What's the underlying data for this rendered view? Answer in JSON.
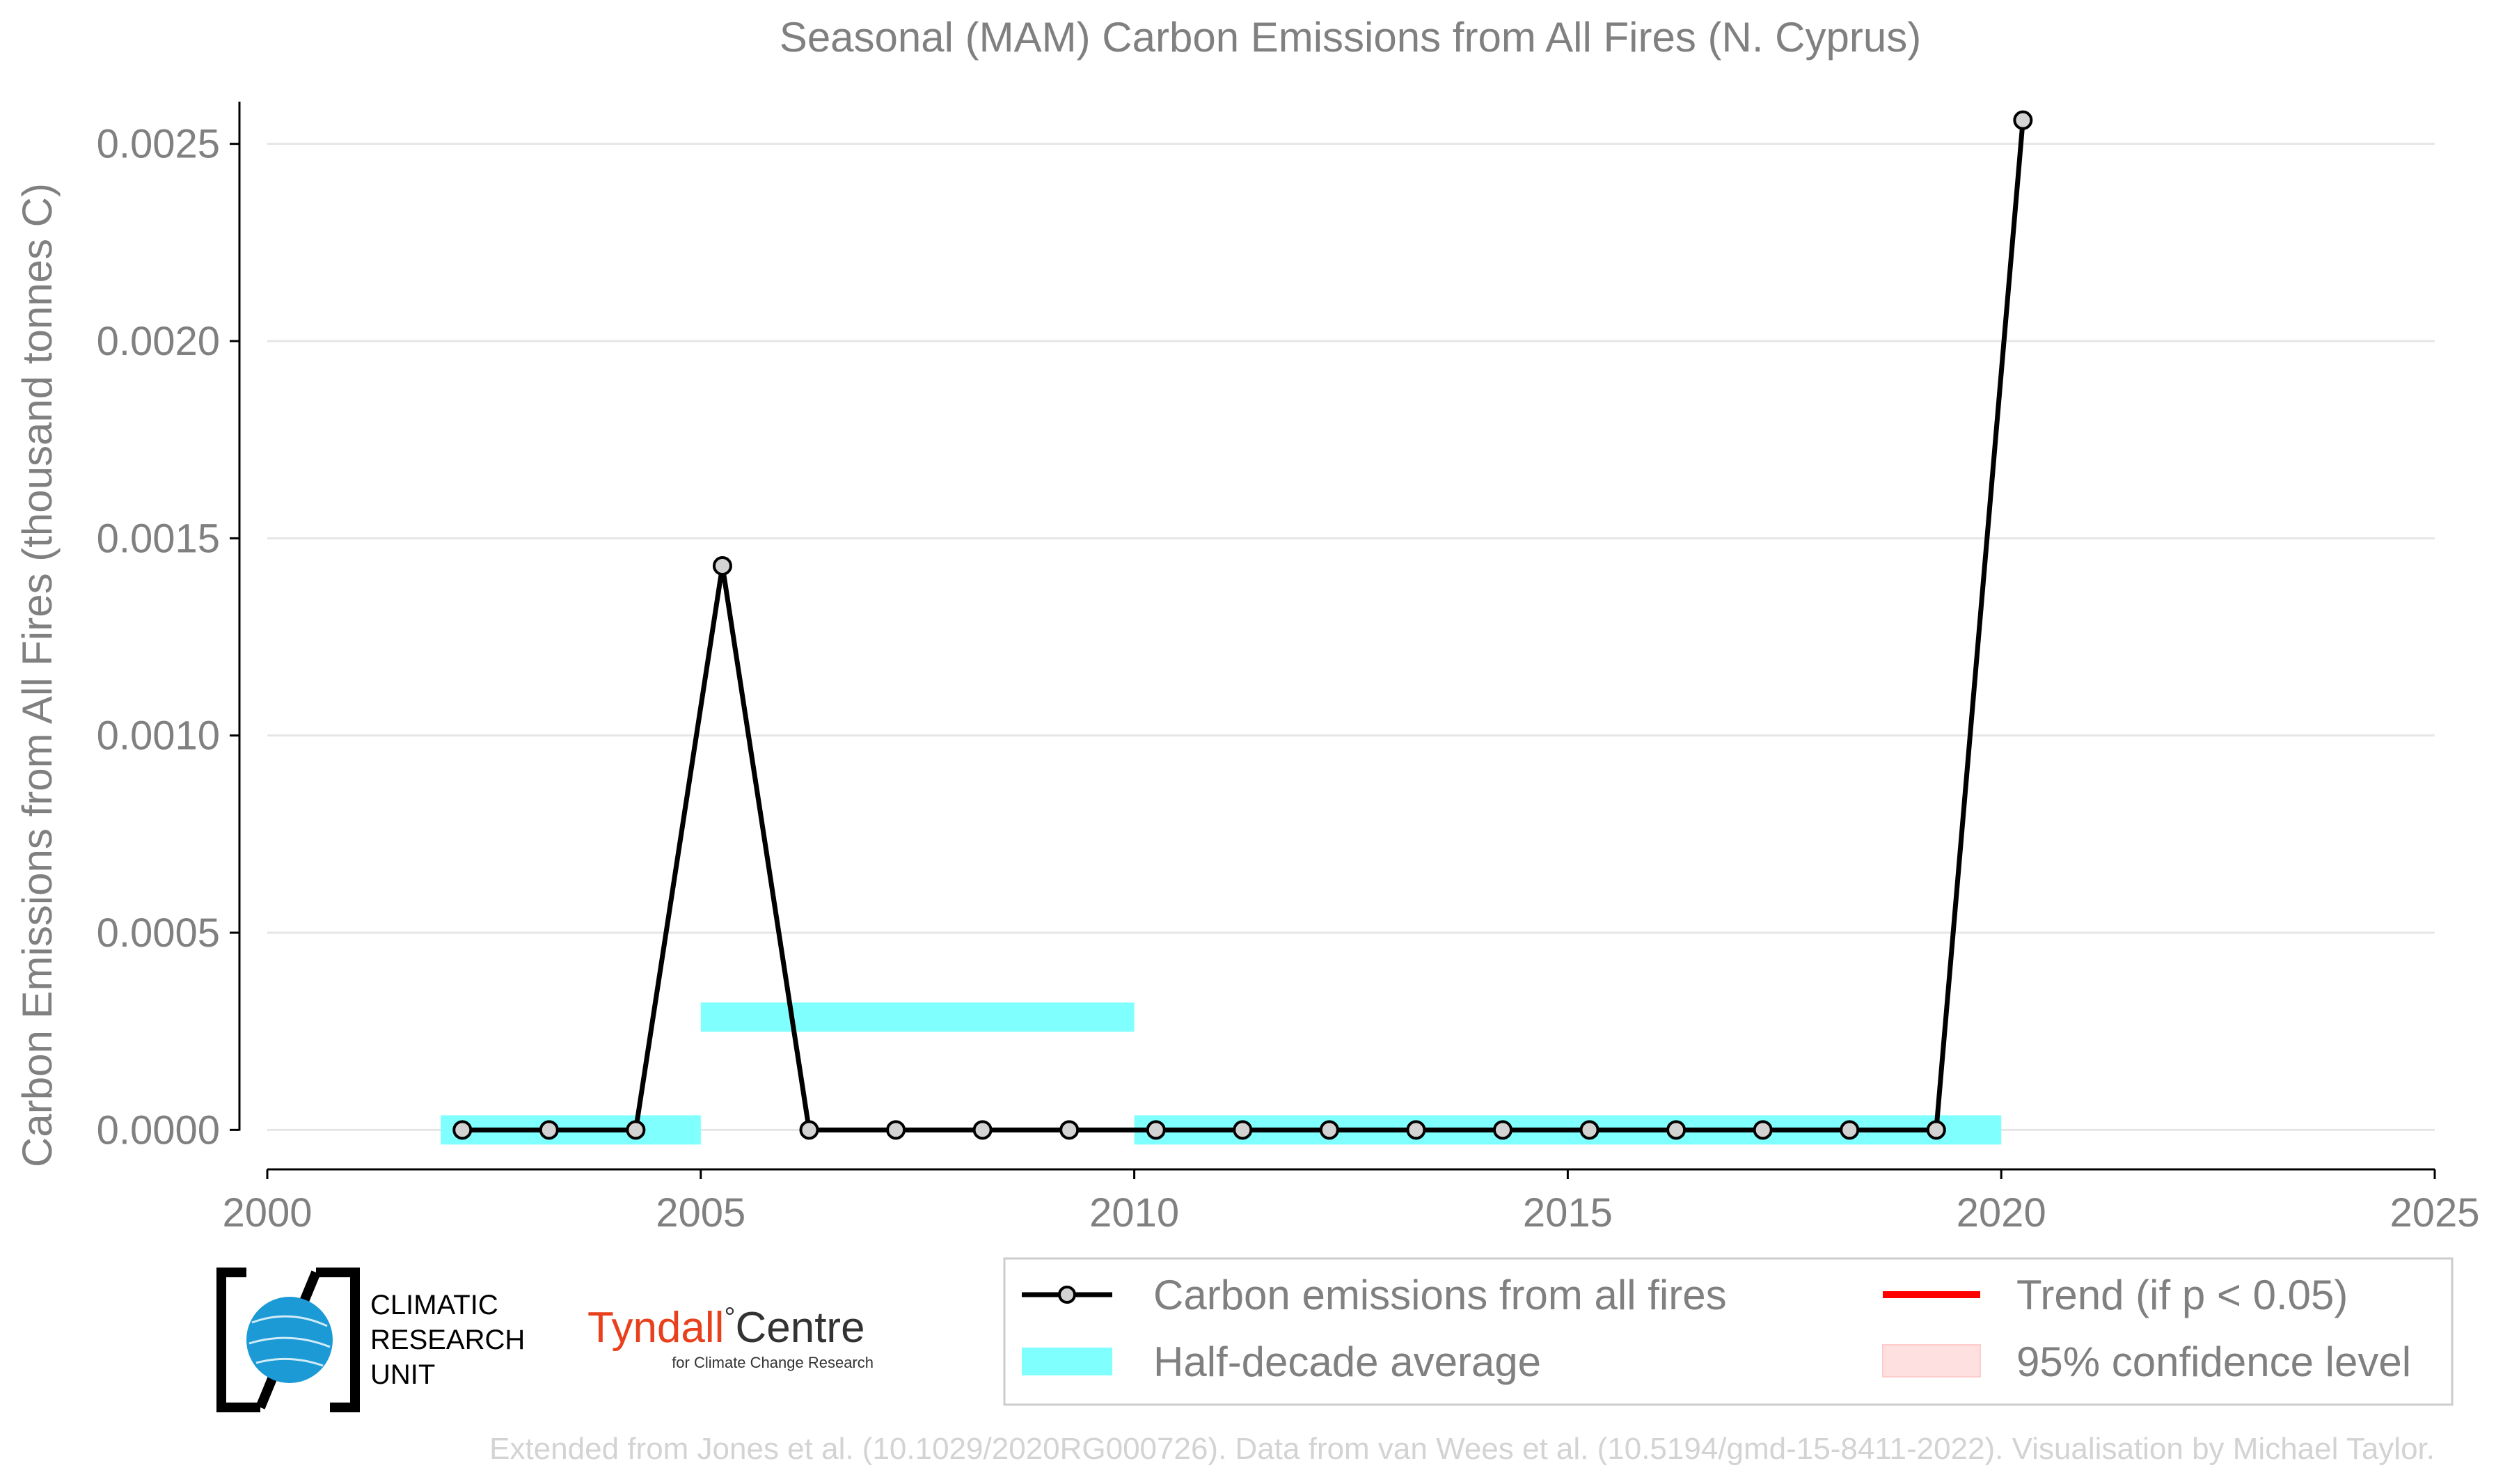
{
  "chart_data": {
    "type": "line",
    "title": "Seasonal (MAM) Carbon Emissions from All Fires (N. Cyprus)",
    "xlabel": "",
    "ylabel": "Carbon Emissions from All Fires (thousand tonnes C)",
    "xlim": [
      2000,
      2025
    ],
    "ylim": [
      -0.0001,
      0.0026
    ],
    "x_ticks": [
      "2000",
      "2005",
      "2010",
      "2015",
      "2020",
      "2025"
    ],
    "y_ticks": [
      "0.0000",
      "0.0005",
      "0.0010",
      "0.0015",
      "0.0020",
      "0.0025"
    ],
    "grid": "horizontal",
    "series": [
      {
        "name": "Carbon emissions from all fires",
        "color": "#000000",
        "x": [
          2002.25,
          2003.25,
          2004.25,
          2005.25,
          2006.25,
          2007.25,
          2008.25,
          2009.25,
          2010.25,
          2011.25,
          2012.25,
          2013.25,
          2014.25,
          2015.25,
          2016.25,
          2017.25,
          2018.25,
          2019.25,
          2020.25
        ],
        "values": [
          0,
          0,
          0,
          0.00143,
          0,
          0,
          0,
          0,
          0,
          0,
          0,
          0,
          0,
          0,
          0,
          0,
          0,
          0,
          0.00256
        ]
      }
    ],
    "half_decade_average": {
      "name": "Half-decade average",
      "color": "#80ffff",
      "segments": [
        {
          "x_start": 2002,
          "x_end": 2005,
          "value": 0
        },
        {
          "x_start": 2005,
          "x_end": 2010,
          "value": 0.000286
        },
        {
          "x_start": 2010,
          "x_end": 2020,
          "value": 0
        }
      ]
    },
    "legend": {
      "placement": "bottom-right",
      "entries": [
        {
          "label": "Carbon emissions from all fires",
          "color": "#000000"
        },
        {
          "label": "Half-decade average",
          "color": "#80ffff"
        },
        {
          "label": "Trend (if p < 0.05)",
          "color": "#ff0000"
        },
        {
          "label": "95% confidence level",
          "color": "#ffe0e0"
        }
      ]
    }
  },
  "logos": {
    "cru": {
      "line1": "CLIMATIC",
      "line2": "RESEARCH",
      "line3": "UNIT"
    },
    "tyndall": {
      "name_part1": "Tyndall",
      "degree": "°",
      "name_part2": "Centre",
      "subtitle": "for Climate Change Research",
      "brand_color": "#e8401c"
    }
  },
  "credit": "Extended from Jones et al. (10.1029/2020RG000726). Data from van Wees et al. (10.5194/gmd-15-8411-2022). Visualisation by Michael Taylor."
}
